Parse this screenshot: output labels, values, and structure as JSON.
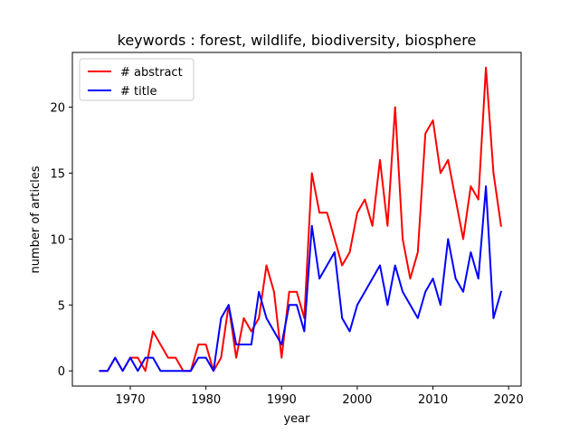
{
  "chart_data": {
    "type": "line",
    "title": "keywords : forest, wildlife, biodiversity, biosphere",
    "xlabel": "year",
    "ylabel": "number of articles",
    "xlim": [
      1962.35,
      2021.65
    ],
    "ylim": [
      -1.15,
      24.15
    ],
    "xticks": [
      1970,
      1980,
      1990,
      2000,
      2010,
      2020
    ],
    "yticks": [
      0,
      5,
      10,
      15,
      20
    ],
    "grid": false,
    "legend_position": "upper-left",
    "x": [
      1966,
      1967,
      1968,
      1969,
      1970,
      1971,
      1972,
      1973,
      1974,
      1975,
      1976,
      1977,
      1978,
      1979,
      1980,
      1981,
      1982,
      1983,
      1984,
      1985,
      1986,
      1987,
      1988,
      1989,
      1990,
      1991,
      1992,
      1993,
      1994,
      1995,
      1996,
      1997,
      1998,
      1999,
      2000,
      2001,
      2002,
      2003,
      2004,
      2005,
      2006,
      2007,
      2008,
      2009,
      2010,
      2011,
      2012,
      2013,
      2014,
      2015,
      2016,
      2017,
      2018,
      2019
    ],
    "series": [
      {
        "name": "# abstract",
        "color": "#ff0000",
        "values": [
          0,
          0,
          1,
          0,
          1,
          1,
          0,
          3,
          2,
          1,
          1,
          0,
          0,
          2,
          2,
          0,
          1,
          5,
          1,
          4,
          3,
          4,
          8,
          6,
          1,
          6,
          6,
          4,
          15,
          12,
          12,
          10,
          8,
          9,
          12,
          13,
          11,
          16,
          11,
          20,
          10,
          7,
          9,
          18,
          19,
          15,
          16,
          13,
          10,
          14,
          13,
          23,
          15,
          11
        ]
      },
      {
        "name": "# title",
        "color": "#0000ff",
        "values": [
          0,
          0,
          1,
          0,
          1,
          0,
          1,
          1,
          0,
          0,
          0,
          0,
          0,
          1,
          1,
          0,
          4,
          5,
          2,
          2,
          2,
          6,
          4,
          3,
          2,
          5,
          5,
          3,
          11,
          7,
          8,
          9,
          4,
          3,
          5,
          6,
          7,
          8,
          5,
          8,
          6,
          5,
          4,
          6,
          7,
          5,
          10,
          7,
          6,
          9,
          7,
          14,
          4,
          6
        ]
      }
    ]
  }
}
